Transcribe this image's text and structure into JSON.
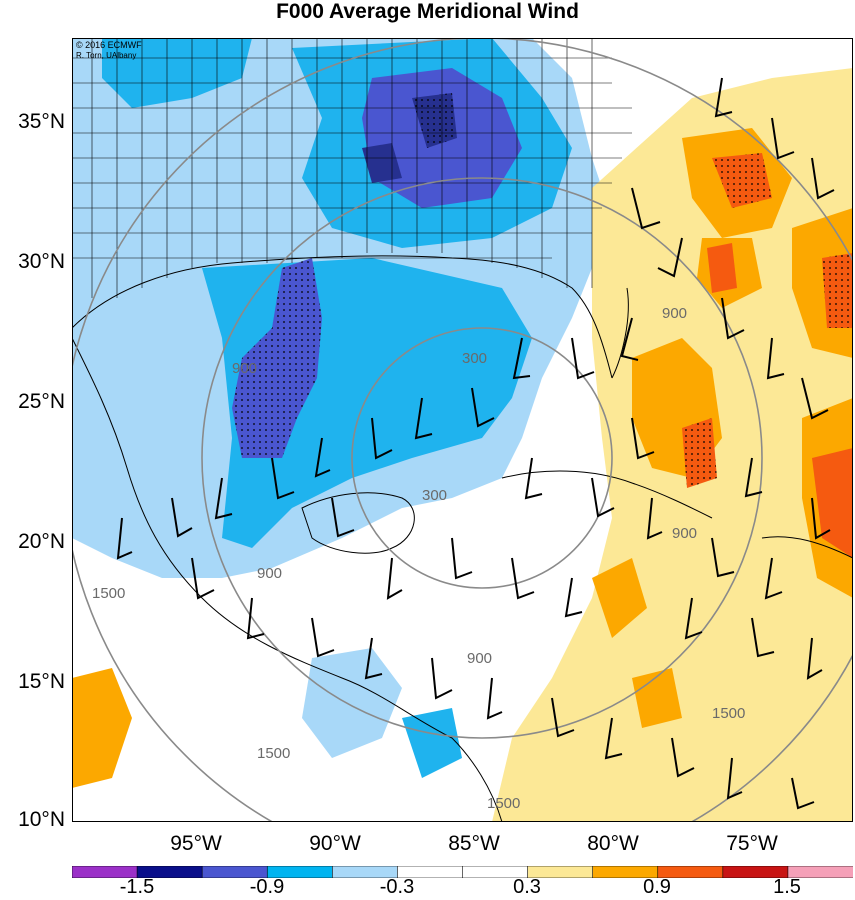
{
  "title": "F000 Average Meridional Wind",
  "credit": {
    "line1": "© 2016 ECMWF",
    "line2": "R. Torn, UAlbany"
  },
  "latitude_labels": [
    "35°N",
    "30°N",
    "25°N",
    "20°N",
    "15°N",
    "10°N"
  ],
  "longitude_labels": [
    "95°W",
    "90°W",
    "85°W",
    "80°W",
    "75°W"
  ],
  "contour_labels": {
    "inner": "300",
    "middle": "900",
    "outer": "1500"
  },
  "colorbar": {
    "labels": [
      "-1.5",
      "-0.9",
      "-0.3",
      "0.3",
      "0.9",
      "1.5"
    ],
    "colors": [
      "#9b30c8",
      "#0a0f8a",
      "#4a56d0",
      "#00b4f0",
      "#a8d8f8",
      "#ffffff",
      "#ffffff",
      "#fce896",
      "#fca800",
      "#f55a10",
      "#c81414",
      "#f5a0b8"
    ]
  },
  "shading_colors": {
    "strong_negative": "#4a56d0",
    "darkest_negative": "#26308f",
    "moderate_negative": "#1fb3ee",
    "weak_negative": "#a8d8f8",
    "weak_positive": "#fce896",
    "moderate_positive": "#fca800",
    "strong_positive": "#f55a10"
  }
}
